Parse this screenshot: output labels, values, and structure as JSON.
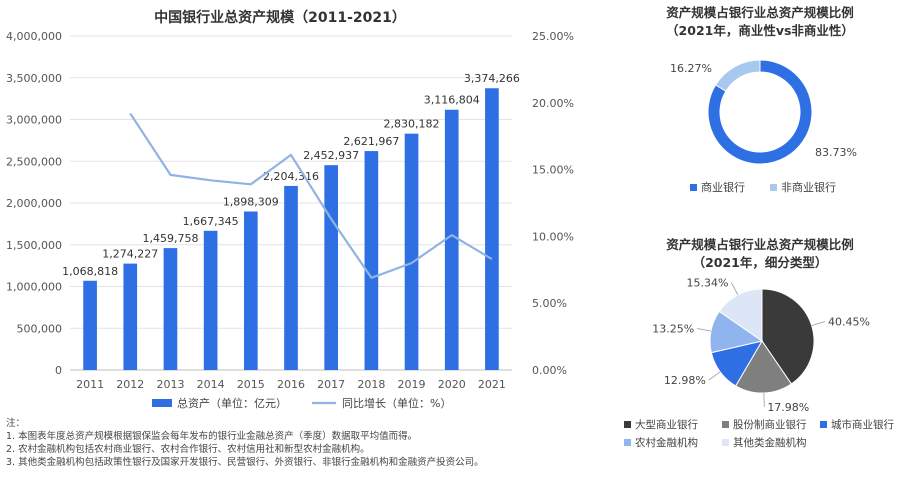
{
  "colors": {
    "bar": "#2f6fe4",
    "line": "#8fb4e3",
    "grid": "#e3e3e3",
    "commercial": "#2f6fe4",
    "non_commercial": "#a9c8f0",
    "pie": [
      "#3a3a3a",
      "#7f7f7f",
      "#2f6fe4",
      "#8fb4ee",
      "#dce6f6"
    ]
  },
  "chart_data": [
    {
      "type": "bar",
      "title": "中国银行业总资产规模（2011-2021）",
      "categories": [
        "2011",
        "2012",
        "2013",
        "2014",
        "2015",
        "2016",
        "2017",
        "2018",
        "2019",
        "2020",
        "2021"
      ],
      "series": [
        {
          "name": "总资产（单位：亿元）",
          "type": "bar",
          "axis": "left",
          "values": [
            1068818,
            1274227,
            1459758,
            1667345,
            1898309,
            2204316,
            2452937,
            2621967,
            2830182,
            3116804,
            3374266
          ],
          "labels": [
            "1,068,818",
            "1,274,227",
            "1,459,758",
            "1,667,345",
            "1,898,309",
            "2,204,316",
            "2,452,937",
            "2,621,967",
            "2,830,182",
            "3,116,804",
            "3,374,266"
          ]
        },
        {
          "name": "同比增长（单位：%）",
          "type": "line",
          "axis": "right",
          "values": [
            null,
            19.2,
            14.6,
            14.2,
            13.9,
            16.1,
            11.3,
            6.9,
            8.0,
            10.1,
            8.3
          ]
        }
      ],
      "ylim": [
        0,
        4000000
      ],
      "y2lim": [
        0,
        25
      ],
      "yticks": [
        "0",
        "500,000",
        "1,000,000",
        "1,500,000",
        "2,000,000",
        "2,500,000",
        "3,000,000",
        "3,500,000",
        "4,000,000"
      ],
      "y2ticks": [
        "0.00%",
        "5.00%",
        "10.00%",
        "15.00%",
        "20.00%",
        "25.00%"
      ],
      "grid": true,
      "legend_position": "bottom"
    },
    {
      "type": "pie",
      "variant": "donut",
      "title_lines": [
        "资产规模占银行业总资产规模比例",
        "（2021年，商业性vs非商业性）"
      ],
      "categories": [
        "商业银行",
        "非商业银行"
      ],
      "values": [
        83.73,
        16.27
      ],
      "labels": [
        "83.73%",
        "16.27%"
      ],
      "legend_position": "bottom"
    },
    {
      "type": "pie",
      "title_lines": [
        "资产规模占银行业总资产规模比例",
        "（2021年，细分类型）"
      ],
      "categories": [
        "大型商业银行",
        "股份制商业银行",
        "城市商业银行",
        "农村金融机构",
        "其他类金融机构"
      ],
      "values": [
        40.45,
        17.98,
        12.98,
        13.25,
        15.34
      ],
      "labels": [
        "40.45%",
        "17.98%",
        "12.98%",
        "13.25%",
        "15.34%"
      ],
      "legend_position": "bottom"
    }
  ],
  "notes": {
    "title": "注：",
    "lines": [
      "1.  本图表年度总资产规模根据银保监会每年发布的银行业金融总资产（季度）数据取平均值而得。",
      "2.  农村金融机构包括农村商业银行、农村合作银行、农村信用社和新型农村金融机构。",
      "3.  其他类金融机构包括政策性银行及国家开发银行、民营银行、外资银行、非银行金融机构和金融资产投资公司。"
    ]
  }
}
